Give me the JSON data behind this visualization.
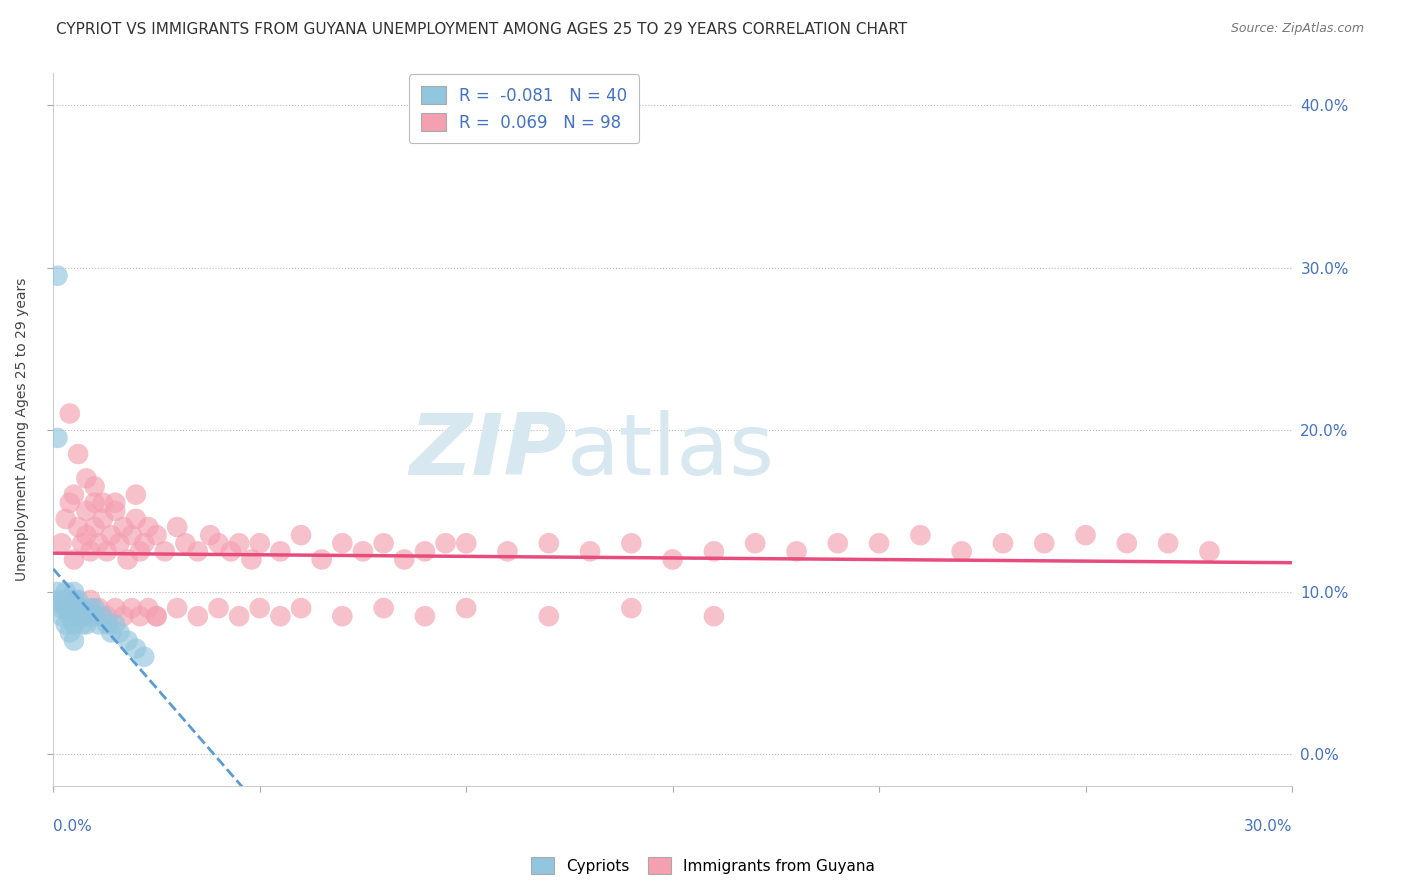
{
  "title": "CYPRIOT VS IMMIGRANTS FROM GUYANA UNEMPLOYMENT AMONG AGES 25 TO 29 YEARS CORRELATION CHART",
  "source": "Source: ZipAtlas.com",
  "ylabel": "Unemployment Among Ages 25 to 29 years",
  "legend_blue_label": "Cypriots",
  "legend_pink_label": "Immigrants from Guyana",
  "R_blue": -0.081,
  "N_blue": 40,
  "R_pink": 0.069,
  "N_pink": 98,
  "blue_color": "#92C5DE",
  "pink_color": "#F4A0B0",
  "trend_blue_color": "#5B9BD5",
  "trend_pink_color": "#E84C7D",
  "legend_text_color": "#4472C4",
  "watermark_color": "#D8E8F0",
  "background_color": "#FFFFFF",
  "title_fontsize": 11,
  "tick_label_color": "#4472C4",
  "xmin": 0.0,
  "xmax": 0.3,
  "ymin": -0.02,
  "ymax": 0.42,
  "ytick_vals": [
    0.0,
    0.1,
    0.2,
    0.3,
    0.4
  ],
  "blue_x": [
    0.001,
    0.001,
    0.002,
    0.002,
    0.002,
    0.003,
    0.003,
    0.003,
    0.003,
    0.004,
    0.004,
    0.004,
    0.004,
    0.005,
    0.005,
    0.005,
    0.005,
    0.005,
    0.006,
    0.006,
    0.006,
    0.007,
    0.007,
    0.007,
    0.008,
    0.008,
    0.009,
    0.01,
    0.01,
    0.011,
    0.012,
    0.013,
    0.014,
    0.015,
    0.016,
    0.018,
    0.02,
    0.022,
    0.001,
    0.001
  ],
  "blue_y": [
    0.095,
    0.1,
    0.085,
    0.095,
    0.09,
    0.08,
    0.09,
    0.095,
    0.1,
    0.075,
    0.085,
    0.09,
    0.095,
    0.07,
    0.08,
    0.085,
    0.095,
    0.1,
    0.085,
    0.09,
    0.095,
    0.08,
    0.085,
    0.09,
    0.08,
    0.085,
    0.09,
    0.085,
    0.09,
    0.08,
    0.085,
    0.08,
    0.075,
    0.08,
    0.075,
    0.07,
    0.065,
    0.06,
    0.295,
    0.195
  ],
  "pink_x": [
    0.002,
    0.003,
    0.004,
    0.005,
    0.005,
    0.006,
    0.007,
    0.008,
    0.008,
    0.009,
    0.01,
    0.01,
    0.011,
    0.012,
    0.013,
    0.014,
    0.015,
    0.016,
    0.017,
    0.018,
    0.019,
    0.02,
    0.021,
    0.022,
    0.023,
    0.025,
    0.027,
    0.03,
    0.032,
    0.035,
    0.038,
    0.04,
    0.043,
    0.045,
    0.048,
    0.05,
    0.055,
    0.06,
    0.065,
    0.07,
    0.075,
    0.08,
    0.085,
    0.09,
    0.095,
    0.1,
    0.11,
    0.12,
    0.13,
    0.14,
    0.15,
    0.16,
    0.17,
    0.18,
    0.19,
    0.2,
    0.21,
    0.22,
    0.23,
    0.24,
    0.25,
    0.26,
    0.27,
    0.28,
    0.003,
    0.005,
    0.007,
    0.009,
    0.011,
    0.013,
    0.015,
    0.017,
    0.019,
    0.021,
    0.023,
    0.025,
    0.03,
    0.035,
    0.04,
    0.045,
    0.05,
    0.055,
    0.06,
    0.07,
    0.08,
    0.09,
    0.1,
    0.12,
    0.14,
    0.16,
    0.004,
    0.006,
    0.008,
    0.01,
    0.012,
    0.015,
    0.02,
    0.025
  ],
  "pink_y": [
    0.13,
    0.145,
    0.155,
    0.12,
    0.16,
    0.14,
    0.13,
    0.15,
    0.135,
    0.125,
    0.14,
    0.155,
    0.13,
    0.145,
    0.125,
    0.135,
    0.15,
    0.13,
    0.14,
    0.12,
    0.135,
    0.145,
    0.125,
    0.13,
    0.14,
    0.135,
    0.125,
    0.14,
    0.13,
    0.125,
    0.135,
    0.13,
    0.125,
    0.13,
    0.12,
    0.13,
    0.125,
    0.135,
    0.12,
    0.13,
    0.125,
    0.13,
    0.12,
    0.125,
    0.13,
    0.13,
    0.125,
    0.13,
    0.125,
    0.13,
    0.12,
    0.125,
    0.13,
    0.125,
    0.13,
    0.13,
    0.135,
    0.125,
    0.13,
    0.13,
    0.135,
    0.13,
    0.13,
    0.125,
    0.09,
    0.095,
    0.085,
    0.095,
    0.09,
    0.085,
    0.09,
    0.085,
    0.09,
    0.085,
    0.09,
    0.085,
    0.09,
    0.085,
    0.09,
    0.085,
    0.09,
    0.085,
    0.09,
    0.085,
    0.09,
    0.085,
    0.09,
    0.085,
    0.09,
    0.085,
    0.21,
    0.185,
    0.17,
    0.165,
    0.155,
    0.155,
    0.16,
    0.085
  ]
}
